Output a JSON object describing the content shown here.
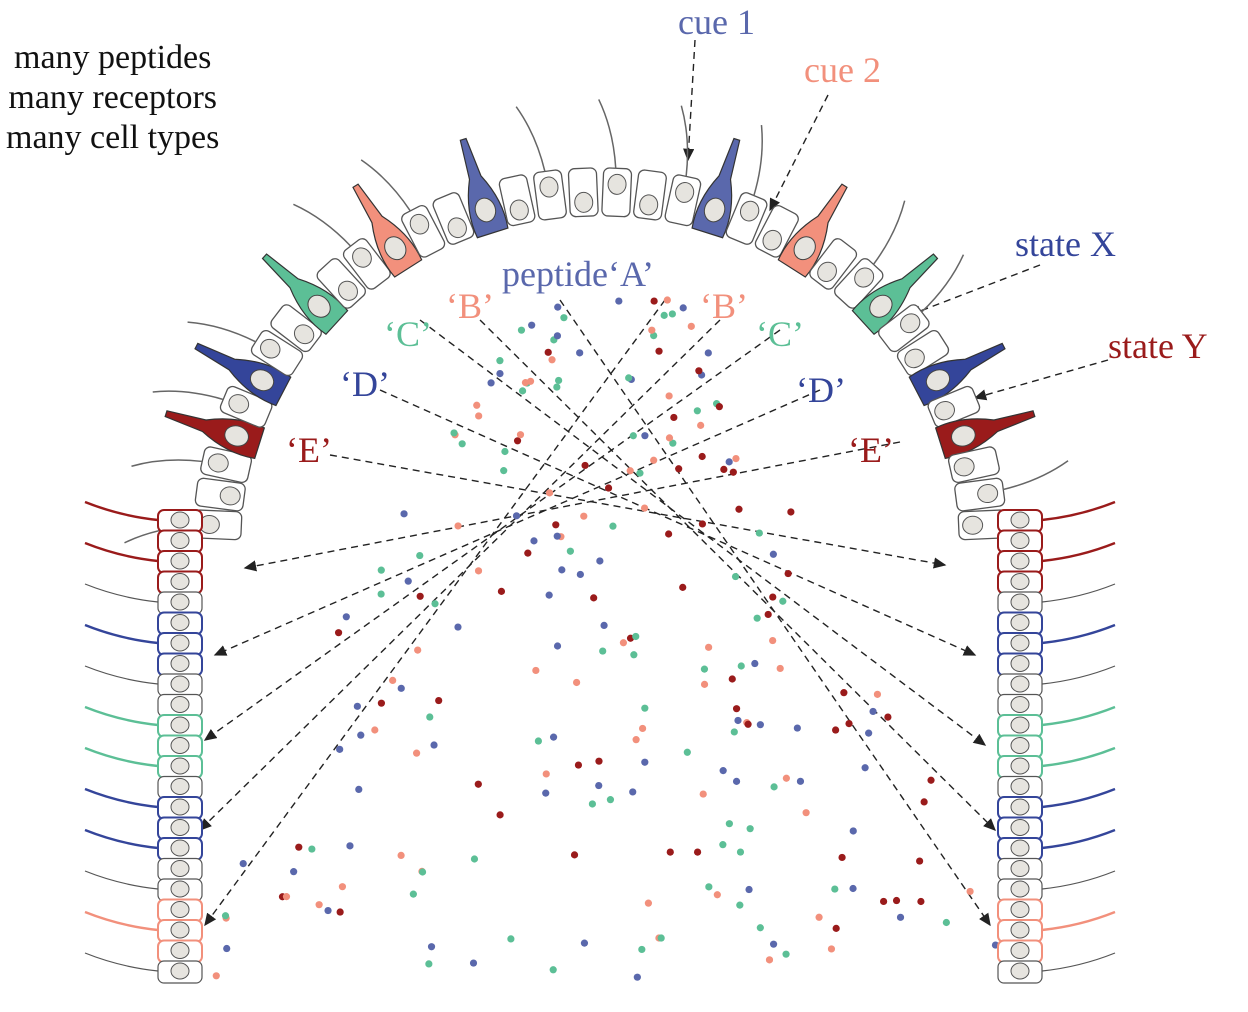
{
  "intro": [
    "many peptides",
    "many receptors",
    "many cell types"
  ],
  "labels": {
    "cue1": "cue 1",
    "cue2": "cue 2",
    "stateX": "state X",
    "stateY": "state Y",
    "peptideA": "peptide‘A’",
    "B": "‘B’",
    "C": "‘C’",
    "D": "‘D’",
    "E": "‘E’"
  },
  "colors": {
    "A": "#5a68ac",
    "B": "#f2907c",
    "C": "#5cbf96",
    "D": "#34459a",
    "E": "#9a1b1b",
    "cell_outline": "#555555",
    "nucleus": "#e6e4df"
  }
}
